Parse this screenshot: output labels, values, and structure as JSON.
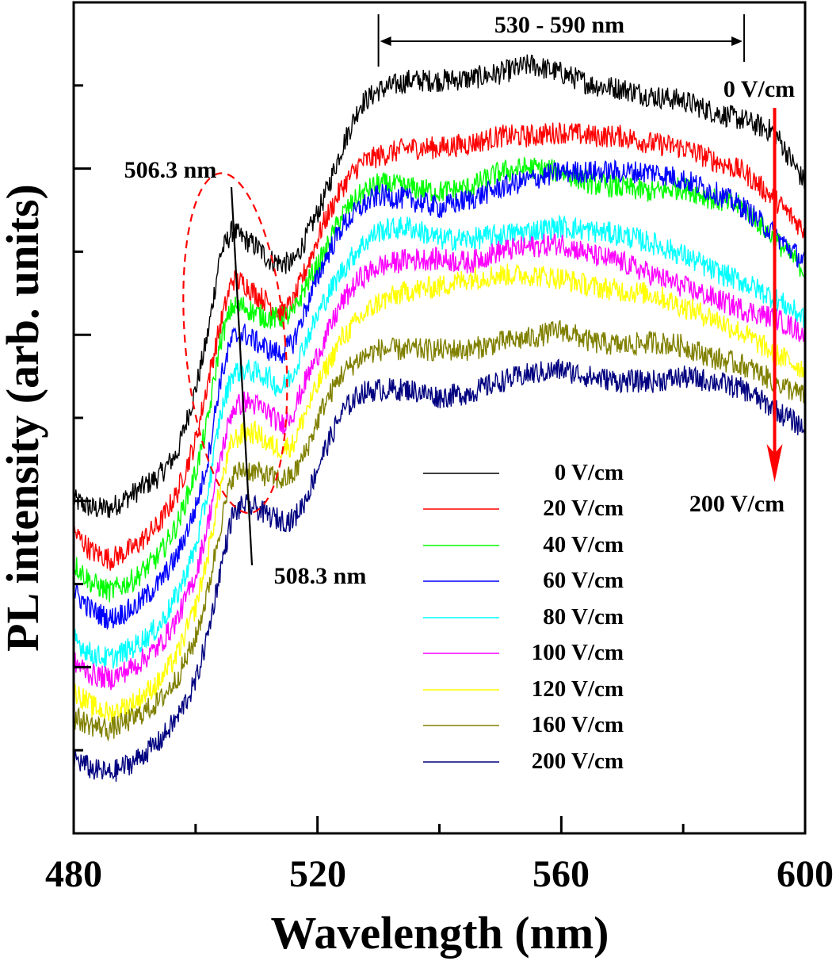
{
  "chart_data": {
    "type": "line",
    "title": "",
    "xlabel": "Wavelength (nm)",
    "ylabel": "PL intensity (arb. units)",
    "xlim": [
      480,
      600
    ],
    "ylim": [
      0,
      10
    ],
    "x_ticks": [
      480,
      520,
      560,
      600
    ],
    "x_tick_labels": [
      "480",
      "520",
      "560",
      "600"
    ],
    "x_minor_ticks": [
      500,
      540,
      580
    ],
    "y_major_ticks": [
      2,
      4,
      8
    ],
    "y_minor_ticks": [
      1,
      3,
      5,
      7,
      9
    ],
    "y_tick_labels_shown": false,
    "grid": false,
    "legend_position": "center-right",
    "x": [
      480,
      483,
      486,
      490,
      494,
      497,
      500,
      502,
      504,
      506,
      508,
      510,
      512,
      514,
      516,
      518,
      521,
      524,
      527,
      530,
      535,
      540,
      545,
      550,
      555,
      560,
      565,
      570,
      575,
      580,
      585,
      590,
      595,
      600
    ],
    "series": [
      {
        "name": "0 V/cm",
        "color": "#000000",
        "values": [
          4.01,
          3.91,
          3.91,
          4.1,
          4.3,
          4.58,
          5.34,
          6.0,
          6.96,
          7.25,
          7.15,
          7.06,
          6.91,
          6.86,
          6.86,
          7.15,
          7.63,
          8.25,
          8.77,
          8.94,
          9.06,
          9.06,
          9.08,
          9.15,
          9.25,
          9.15,
          9.01,
          8.96,
          8.87,
          8.82,
          8.68,
          8.58,
          8.44,
          7.82
        ]
      },
      {
        "name": "20 V/cm",
        "color": "#ff0000",
        "values": [
          3.63,
          3.39,
          3.3,
          3.44,
          3.72,
          4.1,
          4.72,
          5.43,
          6.1,
          6.67,
          6.62,
          6.48,
          6.39,
          6.25,
          6.39,
          6.77,
          7.34,
          7.77,
          8.06,
          8.15,
          8.25,
          8.25,
          8.3,
          8.39,
          8.39,
          8.44,
          8.39,
          8.39,
          8.3,
          8.25,
          8.1,
          7.96,
          7.63,
          7.25
        ]
      },
      {
        "name": "40 V/cm",
        "color": "#00ff00",
        "values": [
          3.25,
          3.01,
          2.91,
          3.06,
          3.34,
          3.72,
          4.34,
          4.96,
          5.91,
          6.34,
          6.34,
          6.25,
          6.2,
          6.2,
          6.25,
          6.58,
          6.96,
          7.44,
          7.68,
          7.82,
          7.77,
          7.72,
          7.77,
          7.96,
          8.01,
          7.96,
          7.82,
          7.77,
          7.72,
          7.77,
          7.63,
          7.53,
          7.15,
          6.77
        ]
      },
      {
        "name": "60 V/cm",
        "color": "#0000ff",
        "values": [
          2.91,
          2.68,
          2.58,
          2.72,
          3.01,
          3.34,
          3.91,
          4.49,
          5.44,
          5.96,
          6.01,
          5.91,
          5.82,
          5.77,
          5.91,
          6.3,
          6.87,
          7.3,
          7.53,
          7.68,
          7.63,
          7.53,
          7.63,
          7.77,
          7.87,
          7.96,
          7.96,
          7.96,
          7.96,
          7.87,
          7.72,
          7.53,
          7.2,
          6.87
        ]
      },
      {
        "name": "80 V/cm",
        "color": "#00ffff",
        "values": [
          2.34,
          2.15,
          2.1,
          2.25,
          2.49,
          2.87,
          3.44,
          4.1,
          5.01,
          5.54,
          5.58,
          5.54,
          5.49,
          5.34,
          5.54,
          5.91,
          6.39,
          6.77,
          7.06,
          7.25,
          7.3,
          7.15,
          7.15,
          7.2,
          7.25,
          7.3,
          7.25,
          7.2,
          7.1,
          6.96,
          6.77,
          6.63,
          6.44,
          6.2
        ]
      },
      {
        "name": "100 V/cm",
        "color": "#ff00ff",
        "values": [
          2.06,
          1.91,
          1.86,
          2.01,
          2.25,
          2.58,
          3.1,
          3.72,
          4.49,
          5.1,
          5.2,
          5.15,
          5.06,
          4.91,
          5.06,
          5.44,
          5.91,
          6.39,
          6.68,
          6.82,
          6.91,
          6.91,
          6.87,
          7.01,
          7.06,
          7.1,
          6.96,
          6.87,
          6.72,
          6.58,
          6.44,
          6.3,
          6.2,
          6.01
        ]
      },
      {
        "name": "120 V/cm",
        "color": "#ffff00",
        "values": [
          1.72,
          1.53,
          1.44,
          1.58,
          1.82,
          2.15,
          2.72,
          3.34,
          4.15,
          4.72,
          4.82,
          4.82,
          4.68,
          4.63,
          4.68,
          5.06,
          5.54,
          5.96,
          6.2,
          6.39,
          6.53,
          6.58,
          6.68,
          6.72,
          6.72,
          6.68,
          6.58,
          6.53,
          6.49,
          6.34,
          6.2,
          6.01,
          5.77,
          5.58
        ]
      },
      {
        "name": "160 V/cm",
        "color": "#808000",
        "values": [
          1.39,
          1.3,
          1.25,
          1.39,
          1.58,
          1.87,
          2.34,
          2.91,
          3.68,
          4.3,
          4.39,
          4.34,
          4.3,
          4.25,
          4.3,
          4.58,
          5.15,
          5.53,
          5.72,
          5.82,
          5.82,
          5.82,
          5.82,
          5.91,
          5.96,
          6.06,
          5.91,
          5.87,
          5.91,
          5.87,
          5.72,
          5.63,
          5.44,
          5.25
        ]
      },
      {
        "name": "200 V/cm",
        "color": "#000080",
        "values": [
          0.91,
          0.77,
          0.72,
          0.87,
          1.1,
          1.39,
          1.82,
          2.39,
          3.15,
          3.82,
          3.96,
          3.91,
          3.82,
          3.77,
          3.77,
          4.01,
          4.58,
          5.06,
          5.3,
          5.34,
          5.34,
          5.25,
          5.3,
          5.44,
          5.53,
          5.58,
          5.49,
          5.44,
          5.44,
          5.49,
          5.44,
          5.34,
          5.1,
          4.87
        ]
      }
    ],
    "annotations": {
      "range_label": "530 - 590 nm",
      "range": [
        530,
        590
      ],
      "peak_label_top": "506.3 nm",
      "peak_label_bottom": "508.3 nm",
      "peak_line": {
        "from": [
          506.3,
          8.0
        ],
        "to": [
          508.3,
          3.2
        ]
      },
      "arrow_top_label": "0 V/cm",
      "arrow_bottom_label": "200 V/cm",
      "arrow_color": "#ff0000",
      "arrow_x": 595,
      "ellipse_color": "#ff0000",
      "ellipse_center": [
        506.5,
        5.9
      ],
      "ellipse_semi_axes": [
        8.5,
        4.0
      ]
    }
  }
}
